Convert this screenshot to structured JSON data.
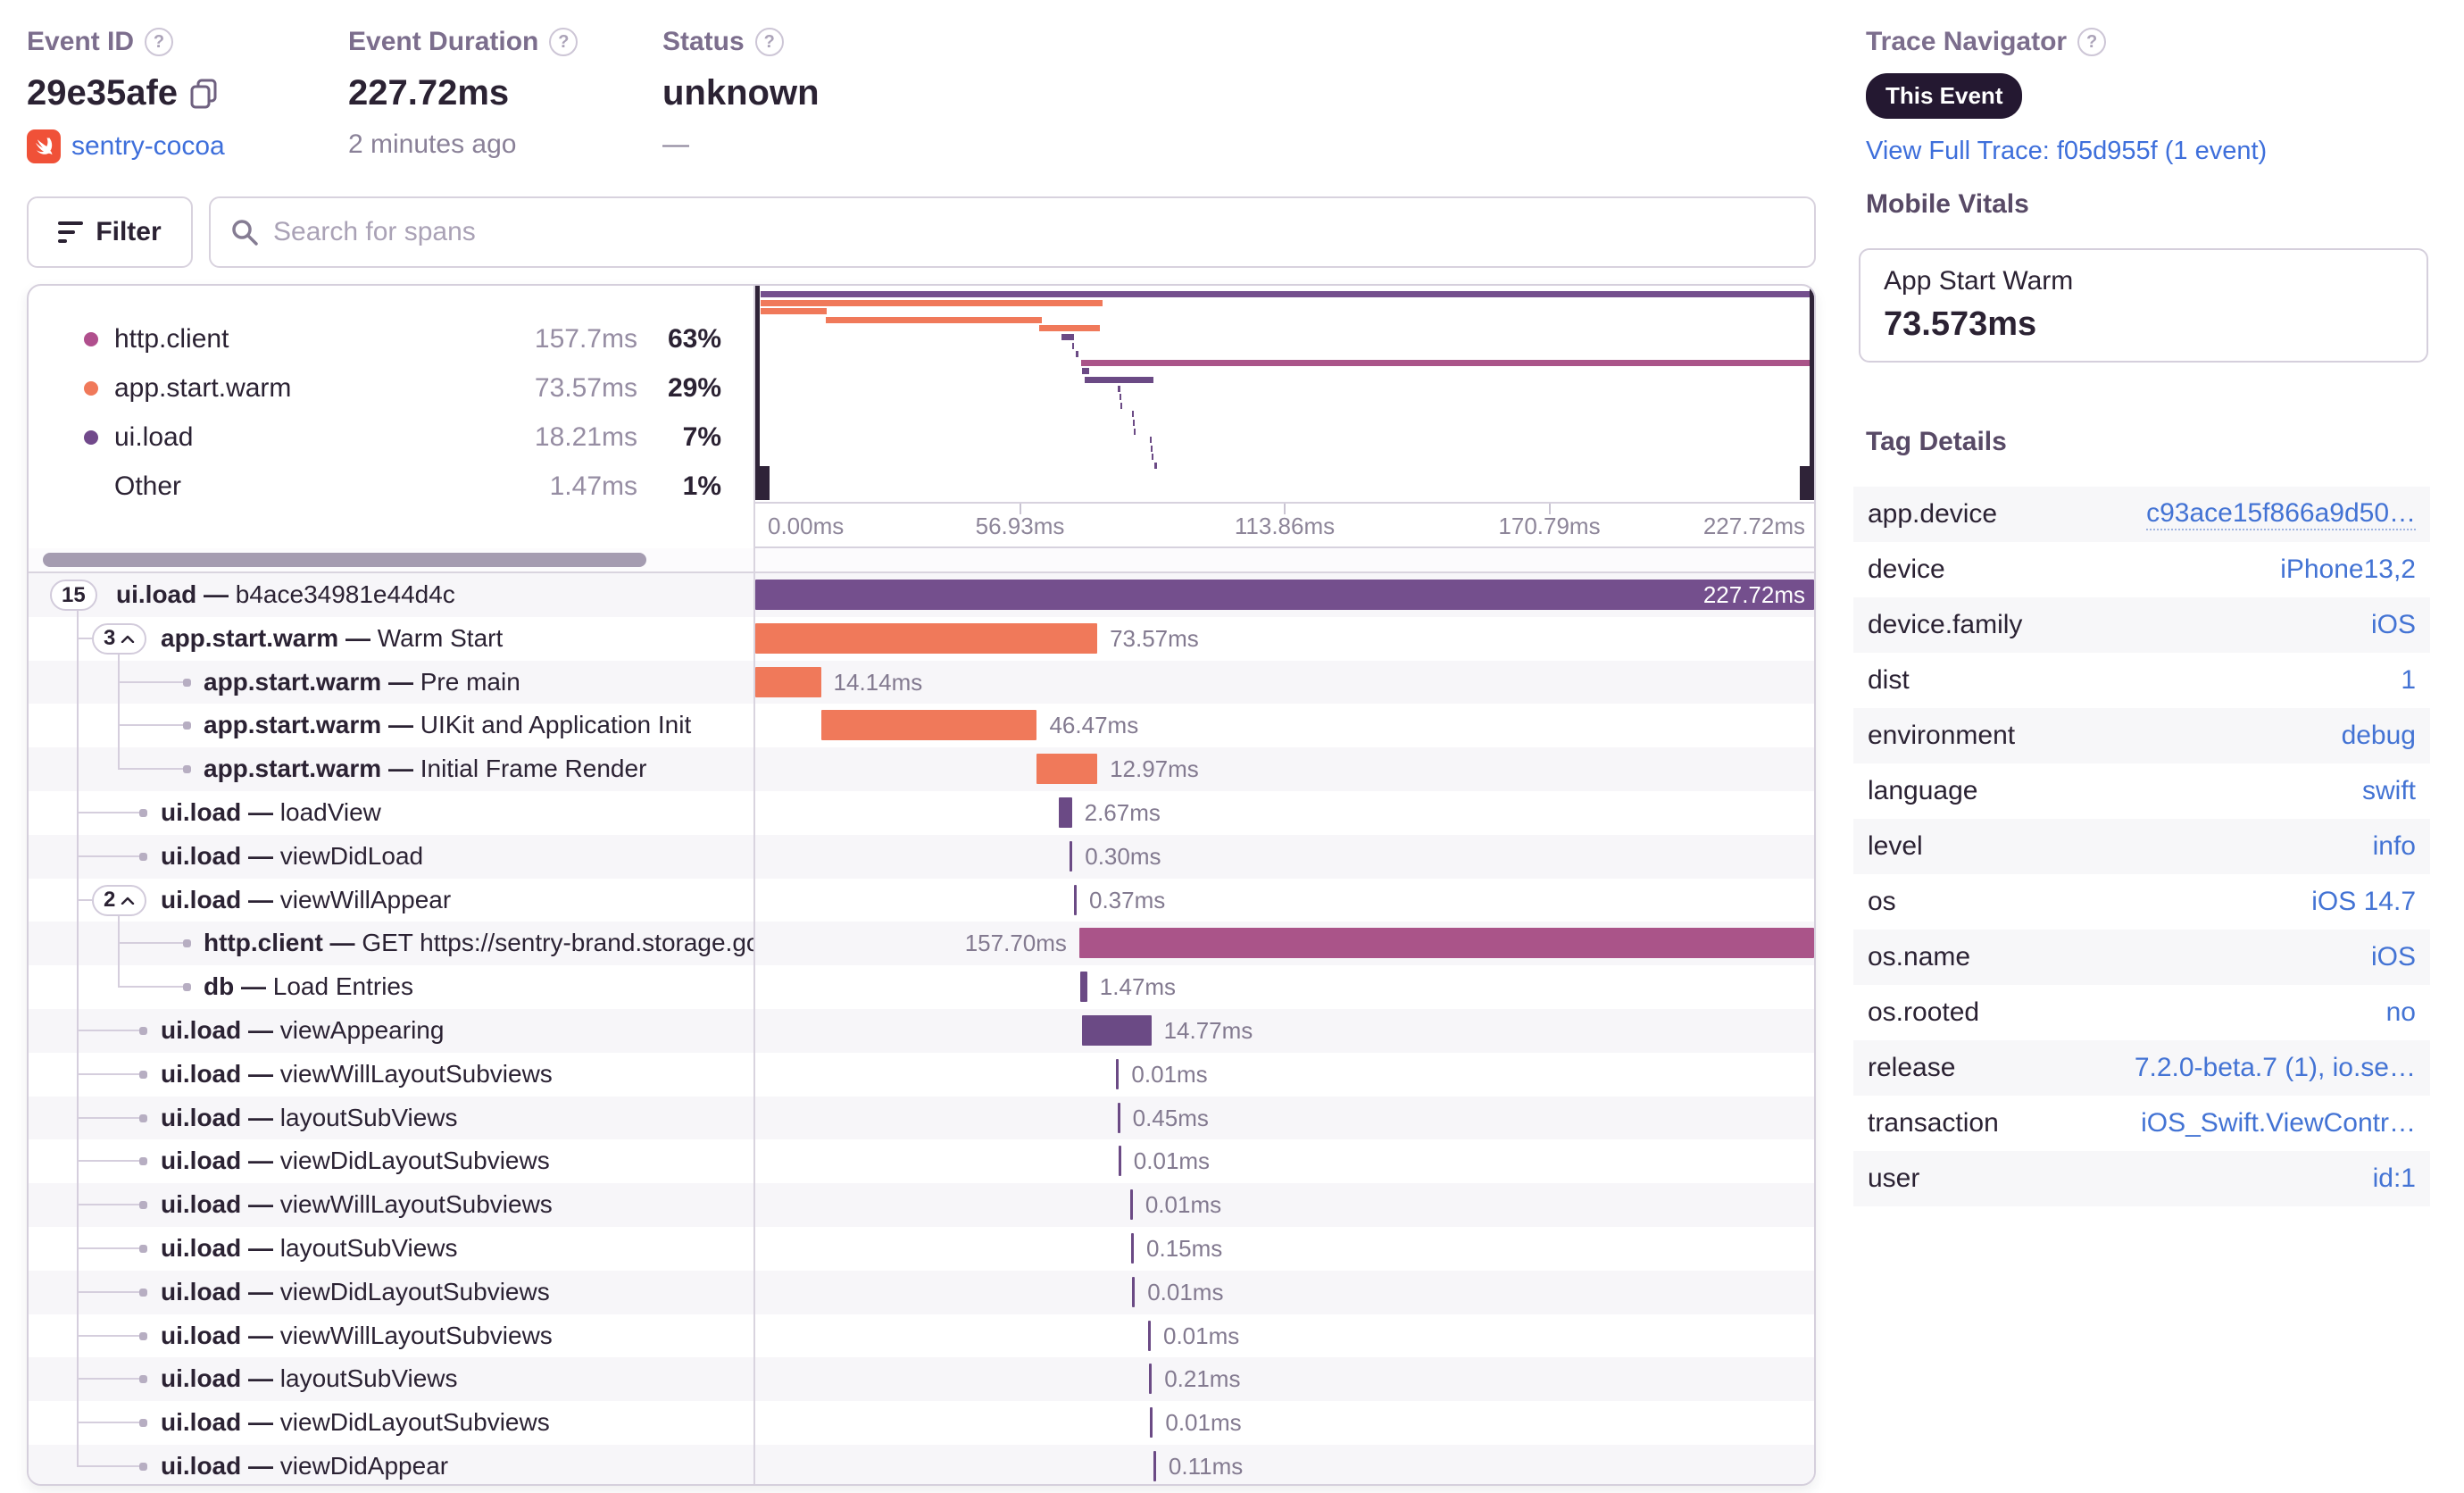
{
  "header": {
    "event_id": {
      "label": "Event ID",
      "value": "29e35afe",
      "project": "sentry-cocoa"
    },
    "duration": {
      "label": "Event Duration",
      "value": "227.72ms",
      "ago": "2 minutes ago"
    },
    "status": {
      "label": "Status",
      "value": "unknown",
      "sub": "—"
    }
  },
  "trace_navigator": {
    "label": "Trace Navigator",
    "pill": "This Event",
    "link": "View Full Trace: f05d955f (1 event)"
  },
  "toolbar": {
    "filter_label": "Filter",
    "search_placeholder": "Search for spans"
  },
  "legend": {
    "items": [
      {
        "name": "http.client",
        "duration": "157.7ms",
        "pct": "63%",
        "color": "#b04f8d"
      },
      {
        "name": "app.start.warm",
        "duration": "73.57ms",
        "pct": "29%",
        "color": "#f0795a"
      },
      {
        "name": "ui.load",
        "duration": "18.21ms",
        "pct": "7%",
        "color": "#71498b"
      },
      {
        "name": "Other",
        "duration": "1.47ms",
        "pct": "1%",
        "color": ""
      }
    ]
  },
  "mobile_vitals": {
    "title": "Mobile Vitals",
    "card": {
      "name": "App Start Warm",
      "value": "73.573ms"
    }
  },
  "tag_details": {
    "title": "Tag Details",
    "rows": [
      {
        "key": "app.device",
        "value": "c93ace15f866a9d50…",
        "dotted": true
      },
      {
        "key": "device",
        "value": "iPhone13,2"
      },
      {
        "key": "device.family",
        "value": "iOS"
      },
      {
        "key": "dist",
        "value": "1"
      },
      {
        "key": "environment",
        "value": "debug"
      },
      {
        "key": "language",
        "value": "swift"
      },
      {
        "key": "level",
        "value": "info"
      },
      {
        "key": "os",
        "value": "iOS 14.7"
      },
      {
        "key": "os.name",
        "value": "iOS"
      },
      {
        "key": "os.rooted",
        "value": "no"
      },
      {
        "key": "release",
        "value": "7.2.0-beta.7 (1), io.se…"
      },
      {
        "key": "transaction",
        "value": "iOS_Swift.ViewContr…"
      },
      {
        "key": "user",
        "value": "id:1"
      }
    ]
  },
  "chart_data": {
    "type": "gantt",
    "total_ms": 227.72,
    "axis_ticks": [
      "0.00ms",
      "56.93ms",
      "113.86ms",
      "170.79ms",
      "227.72ms"
    ],
    "colors": {
      "root": "#744f8d",
      "ui.load": "#6b4a85",
      "app.start.warm": "#f0795a",
      "http.client": "#aa5489",
      "db": "#6b4a85"
    },
    "spans": [
      {
        "op": "ui.load",
        "desc": "b4ace34981e44d4c",
        "dur": "227.72ms",
        "start_pct": 0,
        "width_pct": 100,
        "color": "root",
        "label_side": "inside",
        "badge": "15",
        "lines": [
          "tb"
        ],
        "textX": 98
      },
      {
        "op": "app.start.warm",
        "desc": "Warm Start",
        "dur": "73.57ms",
        "start_pct": 0,
        "width_pct": 32.3,
        "color": "app.start.warm",
        "label_side": "right",
        "badge": "3^",
        "lines": [
          "t",
          "sb"
        ],
        "hline": [
          54,
          71
        ],
        "textX": 148
      },
      {
        "op": "app.start.warm",
        "desc": "Pre main",
        "dur": "14.14ms",
        "start_pct": 0,
        "width_pct": 6.2,
        "color": "app.start.warm",
        "label_side": "right",
        "lines": [
          "t",
          "s"
        ],
        "hline": [
          100,
          177
        ],
        "dot": 177,
        "textX": 196
      },
      {
        "op": "app.start.warm",
        "desc": "UIKit and Application Init",
        "dur": "46.47ms",
        "start_pct": 6.2,
        "width_pct": 20.4,
        "color": "app.start.warm",
        "label_side": "right",
        "lines": [
          "t",
          "s"
        ],
        "hline": [
          100,
          177
        ],
        "dot": 177,
        "textX": 196
      },
      {
        "op": "app.start.warm",
        "desc": "Initial Frame Render",
        "dur": "12.97ms",
        "start_pct": 26.6,
        "width_pct": 5.7,
        "color": "app.start.warm",
        "label_side": "right",
        "lines": [
          "t",
          "sh"
        ],
        "hline": [
          100,
          177
        ],
        "dot": 177,
        "textX": 196
      },
      {
        "op": "ui.load",
        "desc": "loadView",
        "dur": "2.67ms",
        "start_pct": 28.7,
        "width_pct": 1.2,
        "color": "ui.load",
        "label_side": "right",
        "lines": [
          "t"
        ],
        "hline": [
          54,
          128
        ],
        "dot": 128,
        "textX": 148
      },
      {
        "op": "ui.load",
        "desc": "viewDidLoad",
        "dur": "0.30ms",
        "start_pct": 29.7,
        "width_pct": 0.13,
        "color": "ui.load",
        "label_side": "right",
        "lines": [
          "t"
        ],
        "hline": [
          54,
          128
        ],
        "dot": 128,
        "textX": 148
      },
      {
        "op": "ui.load",
        "desc": "viewWillAppear",
        "dur": "0.37ms",
        "start_pct": 30.1,
        "width_pct": 0.16,
        "color": "ui.load",
        "label_side": "right",
        "badge": "2^",
        "lines": [
          "t",
          "sb"
        ],
        "hline": [
          54,
          71
        ],
        "textX": 148
      },
      {
        "op": "http.client",
        "desc": "GET https://sentry-brand.storage.googleapis.com",
        "dur": "157.70ms",
        "start_pct": 30.6,
        "width_pct": 69.4,
        "color": "http.client",
        "label_side": "left",
        "lines": [
          "t",
          "s"
        ],
        "hline": [
          100,
          177
        ],
        "dot": 177,
        "textX": 196
      },
      {
        "op": "db",
        "desc": "Load Entries",
        "dur": "1.47ms",
        "start_pct": 30.7,
        "width_pct": 0.65,
        "color": "db",
        "label_side": "right",
        "lines": [
          "t",
          "sh"
        ],
        "hline": [
          100,
          177
        ],
        "dot": 177,
        "textX": 196
      },
      {
        "op": "ui.load",
        "desc": "viewAppearing",
        "dur": "14.77ms",
        "start_pct": 30.9,
        "width_pct": 6.5,
        "color": "ui.load",
        "label_side": "right",
        "lines": [
          "t"
        ],
        "hline": [
          54,
          128
        ],
        "dot": 128,
        "textX": 148
      },
      {
        "op": "ui.load",
        "desc": "viewWillLayoutSubviews",
        "dur": "0.01ms",
        "start_pct": 34.1,
        "width_pct": 0.1,
        "color": "ui.load",
        "label_side": "right",
        "lines": [
          "t"
        ],
        "hline": [
          54,
          128
        ],
        "dot": 128,
        "textX": 148
      },
      {
        "op": "ui.load",
        "desc": "layoutSubViews",
        "dur": "0.45ms",
        "start_pct": 34.2,
        "width_pct": 0.2,
        "color": "ui.load",
        "label_side": "right",
        "lines": [
          "t"
        ],
        "hline": [
          54,
          128
        ],
        "dot": 128,
        "textX": 148
      },
      {
        "op": "ui.load",
        "desc": "viewDidLayoutSubviews",
        "dur": "0.01ms",
        "start_pct": 34.3,
        "width_pct": 0.1,
        "color": "ui.load",
        "label_side": "right",
        "lines": [
          "t"
        ],
        "hline": [
          54,
          128
        ],
        "dot": 128,
        "textX": 148
      },
      {
        "op": "ui.load",
        "desc": "viewWillLayoutSubviews",
        "dur": "0.01ms",
        "start_pct": 35.4,
        "width_pct": 0.1,
        "color": "ui.load",
        "label_side": "right",
        "lines": [
          "t"
        ],
        "hline": [
          54,
          128
        ],
        "dot": 128,
        "textX": 148
      },
      {
        "op": "ui.load",
        "desc": "layoutSubViews",
        "dur": "0.15ms",
        "start_pct": 35.5,
        "width_pct": 0.12,
        "color": "ui.load",
        "label_side": "right",
        "lines": [
          "t"
        ],
        "hline": [
          54,
          128
        ],
        "dot": 128,
        "textX": 148
      },
      {
        "op": "ui.load",
        "desc": "viewDidLayoutSubviews",
        "dur": "0.01ms",
        "start_pct": 35.6,
        "width_pct": 0.1,
        "color": "ui.load",
        "label_side": "right",
        "lines": [
          "t"
        ],
        "hline": [
          54,
          128
        ],
        "dot": 128,
        "textX": 148
      },
      {
        "op": "ui.load",
        "desc": "viewWillLayoutSubviews",
        "dur": "0.01ms",
        "start_pct": 37.1,
        "width_pct": 0.1,
        "color": "ui.load",
        "label_side": "right",
        "lines": [
          "t"
        ],
        "hline": [
          54,
          128
        ],
        "dot": 128,
        "textX": 148
      },
      {
        "op": "ui.load",
        "desc": "layoutSubViews",
        "dur": "0.21ms",
        "start_pct": 37.2,
        "width_pct": 0.14,
        "color": "ui.load",
        "label_side": "right",
        "lines": [
          "t"
        ],
        "hline": [
          54,
          128
        ],
        "dot": 128,
        "textX": 148
      },
      {
        "op": "ui.load",
        "desc": "viewDidLayoutSubviews",
        "dur": "0.01ms",
        "start_pct": 37.3,
        "width_pct": 0.1,
        "color": "ui.load",
        "label_side": "right",
        "lines": [
          "t"
        ],
        "hline": [
          54,
          128
        ],
        "dot": 128,
        "textX": 148
      },
      {
        "op": "ui.load",
        "desc": "viewDidAppear",
        "dur": "0.11ms",
        "start_pct": 37.6,
        "width_pct": 0.1,
        "color": "ui.load",
        "label_side": "right",
        "lines": [
          "th"
        ],
        "hline": [
          54,
          128
        ],
        "dot": 128,
        "textX": 148
      }
    ]
  }
}
